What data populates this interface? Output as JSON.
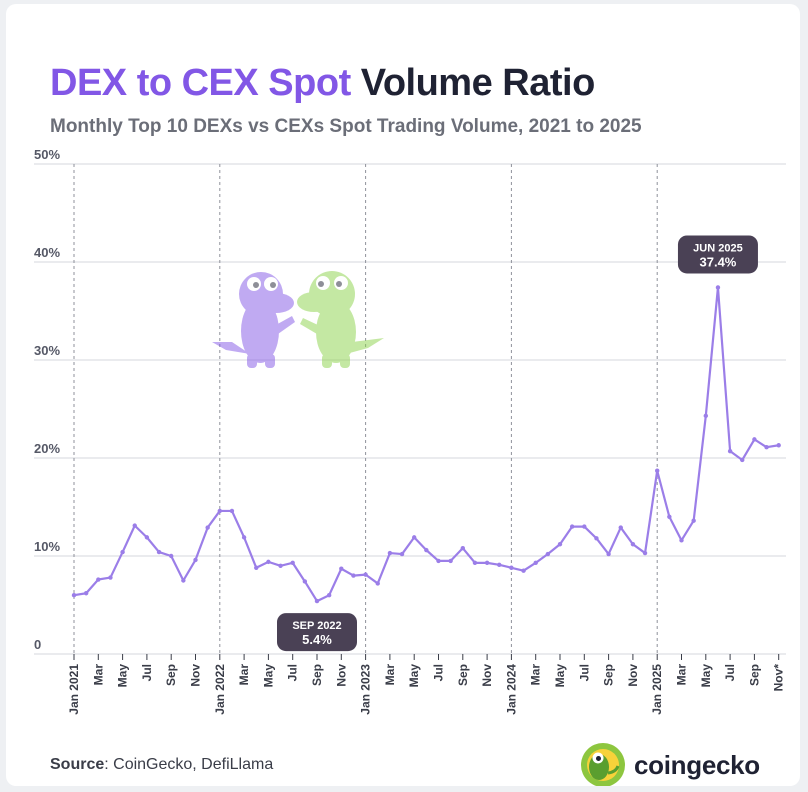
{
  "title": {
    "accent": "DEX to CEX Spot",
    "rest": "Volume Ratio"
  },
  "subtitle": "Monthly Top 10 DEXs vs CEXs Spot Trading Volume, 2021 to 2025",
  "source": {
    "label": "Source",
    "text": "CoinGecko, DefiLlama"
  },
  "brand": {
    "name": "coingecko"
  },
  "colors": {
    "accent": "#8257e6",
    "line": "#9b7ee8",
    "dark": "#1f2233",
    "callout": "#4a4155"
  },
  "chart_data": {
    "type": "line",
    "title": "DEX to CEX Spot Volume Ratio",
    "subtitle": "Monthly Top 10 DEXs vs CEXs Spot Trading Volume, 2021 to 2025",
    "xlabel": "",
    "ylabel": "",
    "ylim": [
      0,
      50
    ],
    "yticks": [
      0,
      10,
      20,
      30,
      40,
      50
    ],
    "ytick_labels": [
      "0",
      "10%",
      "20%",
      "30%",
      "40%",
      "50%"
    ],
    "grid": true,
    "year_markers": [
      "Jan 2021",
      "Jan 2022",
      "Jan 2023",
      "Jan 2024",
      "Jan 2025"
    ],
    "x": [
      "Jan 2021",
      "Feb 2021",
      "Mar 2021",
      "Apr 2021",
      "May 2021",
      "Jun 2021",
      "Jul 2021",
      "Aug 2021",
      "Sep 2021",
      "Oct 2021",
      "Nov 2021",
      "Dec 2021",
      "Jan 2022",
      "Feb 2022",
      "Mar 2022",
      "Apr 2022",
      "May 2022",
      "Jun 2022",
      "Jul 2022",
      "Aug 2022",
      "Sep 2022",
      "Oct 2022",
      "Nov 2022",
      "Dec 2022",
      "Jan 2023",
      "Feb 2023",
      "Mar 2023",
      "Apr 2023",
      "May 2023",
      "Jun 2023",
      "Jul 2023",
      "Aug 2023",
      "Sep 2023",
      "Oct 2023",
      "Nov 2023",
      "Dec 2023",
      "Jan 2024",
      "Feb 2024",
      "Mar 2024",
      "Apr 2024",
      "May 2024",
      "Jun 2024",
      "Jul 2024",
      "Aug 2024",
      "Sep 2024",
      "Oct 2024",
      "Nov 2024",
      "Dec 2024",
      "Jan 2025",
      "Feb 2025",
      "Mar 2025",
      "Apr 2025",
      "May 2025",
      "Jun 2025",
      "Jul 2025",
      "Aug 2025",
      "Sep 2025",
      "Oct 2025",
      "Nov 2025"
    ],
    "tick_labels": [
      "Jan 2021",
      "",
      "Mar",
      "",
      "May",
      "",
      "Jul",
      "",
      "Sep",
      "",
      "Nov",
      "",
      "Jan 2022",
      "",
      "Mar",
      "",
      "May",
      "",
      "Jul",
      "",
      "Sep",
      "",
      "Nov",
      "",
      "Jan 2023",
      "",
      "Mar",
      "",
      "May",
      "",
      "Jul",
      "",
      "Sep",
      "",
      "Nov",
      "",
      "Jan 2024",
      "",
      "Mar",
      "",
      "May",
      "",
      "Jul",
      "",
      "Sep",
      "",
      "Nov",
      "",
      "Jan 2025",
      "",
      "Mar",
      "",
      "May",
      "",
      "Jul",
      "",
      "Sep",
      "",
      "Nov*"
    ],
    "series": [
      {
        "name": "DEX to CEX spot volume ratio (%)",
        "values": [
          6.0,
          6.2,
          7.6,
          7.8,
          10.4,
          13.1,
          11.9,
          10.4,
          10.0,
          7.5,
          9.6,
          12.9,
          14.6,
          14.6,
          11.9,
          8.8,
          9.4,
          9.0,
          9.3,
          7.4,
          5.4,
          6.0,
          8.7,
          8.0,
          8.1,
          7.2,
          10.3,
          10.2,
          11.9,
          10.6,
          9.5,
          9.5,
          10.8,
          9.3,
          9.3,
          9.1,
          8.8,
          8.5,
          9.3,
          10.2,
          11.2,
          13.0,
          13.0,
          11.8,
          10.2,
          12.9,
          11.2,
          10.3,
          18.7,
          14.0,
          11.6,
          13.6,
          24.3,
          37.4,
          20.7,
          19.8,
          21.9,
          21.1,
          21.3
        ]
      }
    ],
    "annotations": [
      {
        "label": "SEP 2022",
        "value_text": "5.4%",
        "x": "Sep 2022",
        "y": 5.4,
        "placement": "below"
      },
      {
        "label": "JUN 2025",
        "value_text": "37.4%",
        "x": "Jun 2025",
        "y": 37.4,
        "placement": "above"
      }
    ]
  }
}
